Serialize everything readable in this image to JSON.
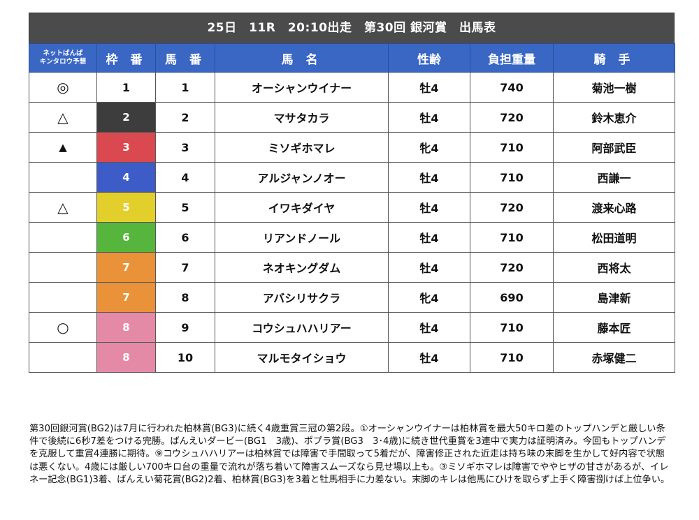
{
  "title": "25日　11R　20:10出走　第30回 銀河賞　出馬表",
  "headers": {
    "prediction_line1": "ネットばんば",
    "prediction_line2": "キンタロウ予想",
    "waku": "枠 番",
    "umaban": "馬 番",
    "name": "馬 名",
    "sex_age": "性齢",
    "weight": "負担重量",
    "jockey": "騎 手"
  },
  "waku_colors": {
    "1": "#ffffff",
    "2": "#3d3d3d",
    "3": "#d9494f",
    "4": "#3d5cc7",
    "5": "#e3cf2b",
    "6": "#55b53c",
    "7": "#e9923a",
    "8": "#e58aa6"
  },
  "rows": [
    {
      "mark": "◎",
      "waku": "1",
      "umaban": "1",
      "name": "オーシャンウイナー",
      "sex_age": "牡4",
      "weight": "740",
      "jockey": "菊池一樹"
    },
    {
      "mark": "△",
      "waku": "2",
      "umaban": "2",
      "name": "マサタカラ",
      "sex_age": "牡4",
      "weight": "720",
      "jockey": "鈴木恵介"
    },
    {
      "mark": "▲",
      "waku": "3",
      "umaban": "3",
      "name": "ミソギホマレ",
      "sex_age": "牝4",
      "weight": "710",
      "jockey": "阿部武臣"
    },
    {
      "mark": "",
      "waku": "4",
      "umaban": "4",
      "name": "アルジャンノオー",
      "sex_age": "牡4",
      "weight": "710",
      "jockey": "西謙一"
    },
    {
      "mark": "△",
      "waku": "5",
      "umaban": "5",
      "name": "イワキダイヤ",
      "sex_age": "牡4",
      "weight": "720",
      "jockey": "渡来心路"
    },
    {
      "mark": "",
      "waku": "6",
      "umaban": "6",
      "name": "リアンドノール",
      "sex_age": "牡4",
      "weight": "710",
      "jockey": "松田道明"
    },
    {
      "mark": "",
      "waku": "7",
      "umaban": "7",
      "name": "ネオキングダム",
      "sex_age": "牡4",
      "weight": "720",
      "jockey": "西将太"
    },
    {
      "mark": "",
      "waku": "7",
      "umaban": "8",
      "name": "アバシリサクラ",
      "sex_age": "牝4",
      "weight": "690",
      "jockey": "島津新"
    },
    {
      "mark": "○",
      "waku": "8",
      "umaban": "9",
      "name": "コウシュハハリアー",
      "sex_age": "牡4",
      "weight": "710",
      "jockey": "藤本匠"
    },
    {
      "mark": "",
      "waku": "8",
      "umaban": "10",
      "name": "マルモタイショウ",
      "sex_age": "牡4",
      "weight": "710",
      "jockey": "赤塚健二"
    }
  ],
  "commentary": "第30回銀河賞(BG2)は7月に行われた柏林賞(BG3)に続く4歳重賞三冠の第2段。①オーシャンウイナーは柏林賞を最大50キロ差のトップハンデと厳しい条件で後続に6秒7差をつける完勝。ばんえいダービー(BG1　3歳)、ポプラ賞(BG3　3･4歳)に続き世代重賞を3連中で実力は証明済み。今回もトップハンデを克服して重賞4連勝に期待。⑨コウシュハハリアーは柏林賞では障害で手間取って5着だが、障害修正された近走は持ち味の末脚を生かして好内容で状態は悪くない。4歳には厳しい700キロ台の重量で流れが落ち着いて障害スムーズなら見せ場以上も。③ミソギホマレは障害でややヒザの甘さがあるが、イレネー記念(BG1)3着、ばんえい菊花賞(BG2)2着、柏林賞(BG3)を3着と牡馬相手に力差ない。末脚のキレは他馬にひけを取らず上手く障害捌けば上位争い。"
}
